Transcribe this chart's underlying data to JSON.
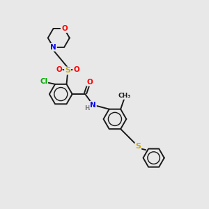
{
  "bg_color": "#e8e8e8",
  "bond_color": "#1a1a1a",
  "atom_colors": {
    "O": "#ff0000",
    "N": "#0000ee",
    "S": "#ccaa00",
    "Cl": "#00aa00",
    "C": "#1a1a1a"
  },
  "lw": 1.4,
  "fs": 7.5,
  "r_benz": 0.55,
  "r_morph": 0.52
}
